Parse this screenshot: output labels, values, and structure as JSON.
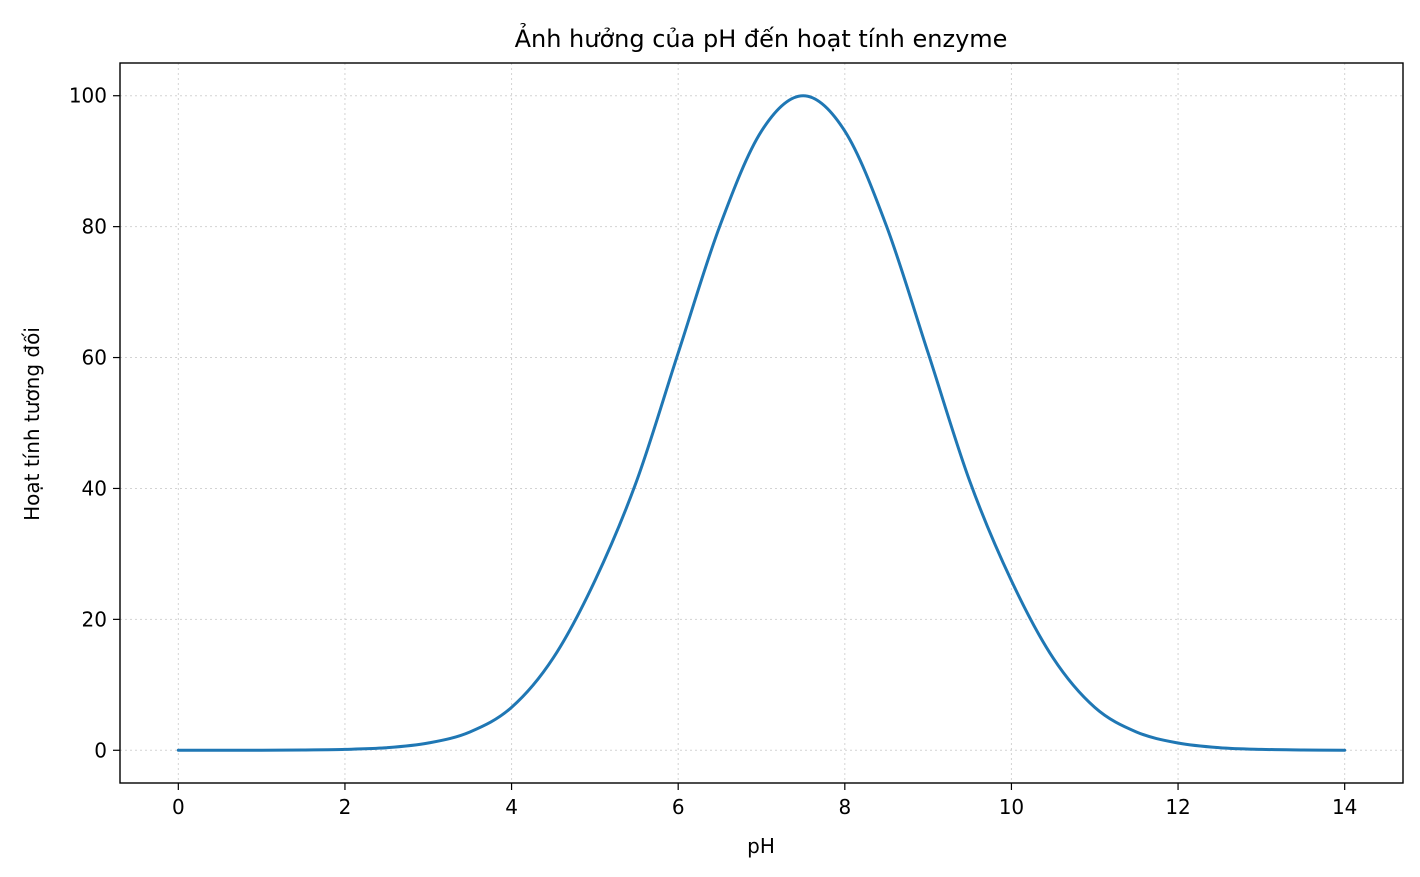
{
  "chart_data": {
    "type": "line",
    "title": "Ảnh hưởng của pH đến hoạt tính enzyme",
    "xlabel": "pH",
    "ylabel": "Hoạt tính tương đối",
    "xlim": [
      -0.7,
      14.7
    ],
    "ylim": [
      -5,
      105
    ],
    "xticks": [
      0,
      2,
      4,
      6,
      8,
      10,
      12,
      14
    ],
    "xtick_labels": [
      "0",
      "2",
      "4",
      "6",
      "8",
      "10",
      "12",
      "14"
    ],
    "yticks": [
      0,
      20,
      40,
      60,
      80,
      100
    ],
    "ytick_labels": [
      "0",
      "20",
      "40",
      "60",
      "80",
      "100"
    ],
    "grid": true,
    "series": [
      {
        "color": "#1f77b4",
        "x": [
          0,
          0.5,
          1,
          1.5,
          2,
          2.5,
          3,
          3.5,
          4,
          4.5,
          5,
          5.5,
          6,
          6.5,
          7,
          7.5,
          8,
          8.5,
          9,
          9.5,
          10,
          10.5,
          11,
          11.5,
          12,
          12.5,
          13,
          13.5,
          14
        ],
        "y": [
          0.0,
          0.0,
          0.0,
          0.05,
          0.14,
          0.39,
          1.11,
          2.8,
          6.55,
          14.1,
          25.9,
          41.1,
          60.7,
          80.1,
          94.6,
          100.0,
          94.6,
          80.1,
          60.7,
          41.1,
          25.9,
          14.1,
          6.55,
          2.8,
          1.11,
          0.39,
          0.14,
          0.05,
          0.0
        ]
      }
    ]
  }
}
